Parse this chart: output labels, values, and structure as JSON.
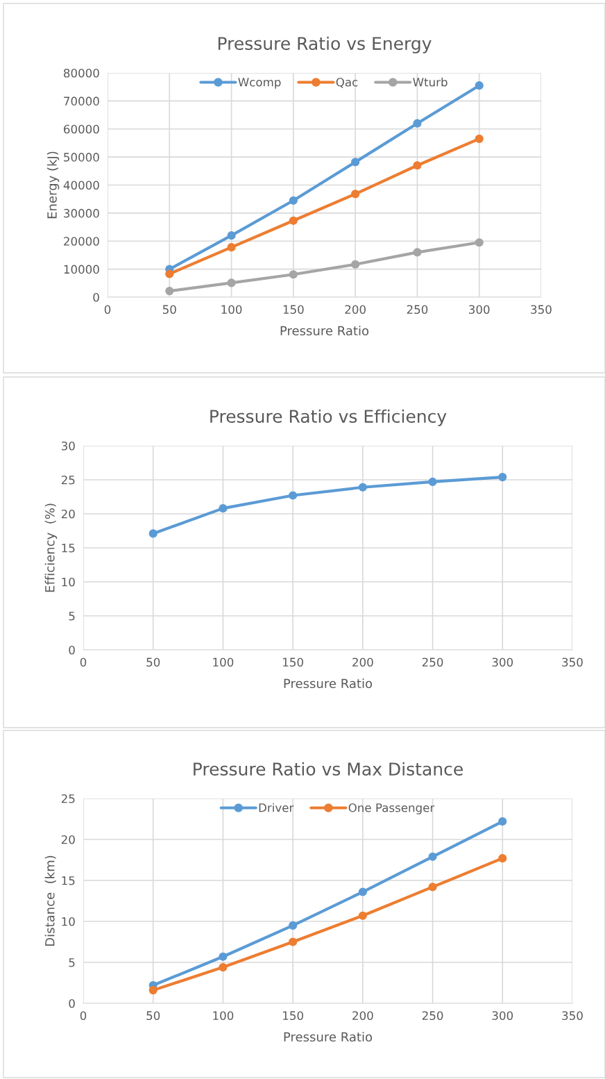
{
  "chart_data": [
    {
      "type": "line",
      "title": "Pressure Ratio vs Energy",
      "xlabel": "Pressure Ratio",
      "ylabel": "Energy (kJ)",
      "x": [
        50,
        100,
        150,
        200,
        250,
        300
      ],
      "xlim": [
        0,
        350
      ],
      "xticks": [
        0,
        50,
        100,
        150,
        200,
        250,
        300,
        350
      ],
      "ylim": [
        0,
        80000
      ],
      "yticks": [
        0,
        10000,
        20000,
        30000,
        40000,
        50000,
        60000,
        70000,
        80000
      ],
      "grid": true,
      "legend": "top",
      "marker": "circle",
      "series": [
        {
          "name": "Wcomp",
          "color": "#5b9bd5",
          "values": [
            10000,
            22000,
            34500,
            48200,
            62000,
            75500
          ]
        },
        {
          "name": "Qac",
          "color": "#ed7d31",
          "values": [
            8300,
            17800,
            27300,
            36800,
            47000,
            56500
          ]
        },
        {
          "name": "Wturb",
          "color": "#a5a5a5",
          "values": [
            2200,
            5100,
            8100,
            11700,
            16000,
            19500
          ]
        }
      ]
    },
    {
      "type": "line",
      "title": "Pressure Ratio vs Efficiency",
      "xlabel": "Pressure Ratio",
      "ylabel": "Efficiency  (%)",
      "x": [
        50,
        100,
        150,
        200,
        250,
        300
      ],
      "xlim": [
        0,
        350
      ],
      "xticks": [
        0,
        50,
        100,
        150,
        200,
        250,
        300,
        350
      ],
      "ylim": [
        0,
        30
      ],
      "yticks": [
        0,
        5,
        10,
        15,
        20,
        25,
        30
      ],
      "grid": true,
      "marker": "circle",
      "series": [
        {
          "color": "#5b9bd5",
          "values": [
            17.1,
            20.8,
            22.7,
            23.9,
            24.7,
            25.4
          ]
        }
      ]
    },
    {
      "type": "line",
      "title": "Pressure Ratio vs Max Distance",
      "xlabel": "Pressure Ratio",
      "ylabel": "Distance  (km)",
      "x": [
        50,
        100,
        150,
        200,
        250,
        300
      ],
      "xlim": [
        0,
        350
      ],
      "xticks": [
        0,
        50,
        100,
        150,
        200,
        250,
        300,
        350
      ],
      "ylim": [
        0,
        25
      ],
      "yticks": [
        0,
        5,
        10,
        15,
        20,
        25
      ],
      "grid": true,
      "legend": "top",
      "marker": "circle",
      "series": [
        {
          "name": "Driver",
          "color": "#5b9bd5",
          "values": [
            2.2,
            5.7,
            9.5,
            13.6,
            17.9,
            22.2
          ]
        },
        {
          "name": "One Passenger",
          "color": "#ed7d31",
          "values": [
            1.6,
            4.4,
            7.5,
            10.7,
            14.2,
            17.7
          ]
        }
      ]
    }
  ]
}
